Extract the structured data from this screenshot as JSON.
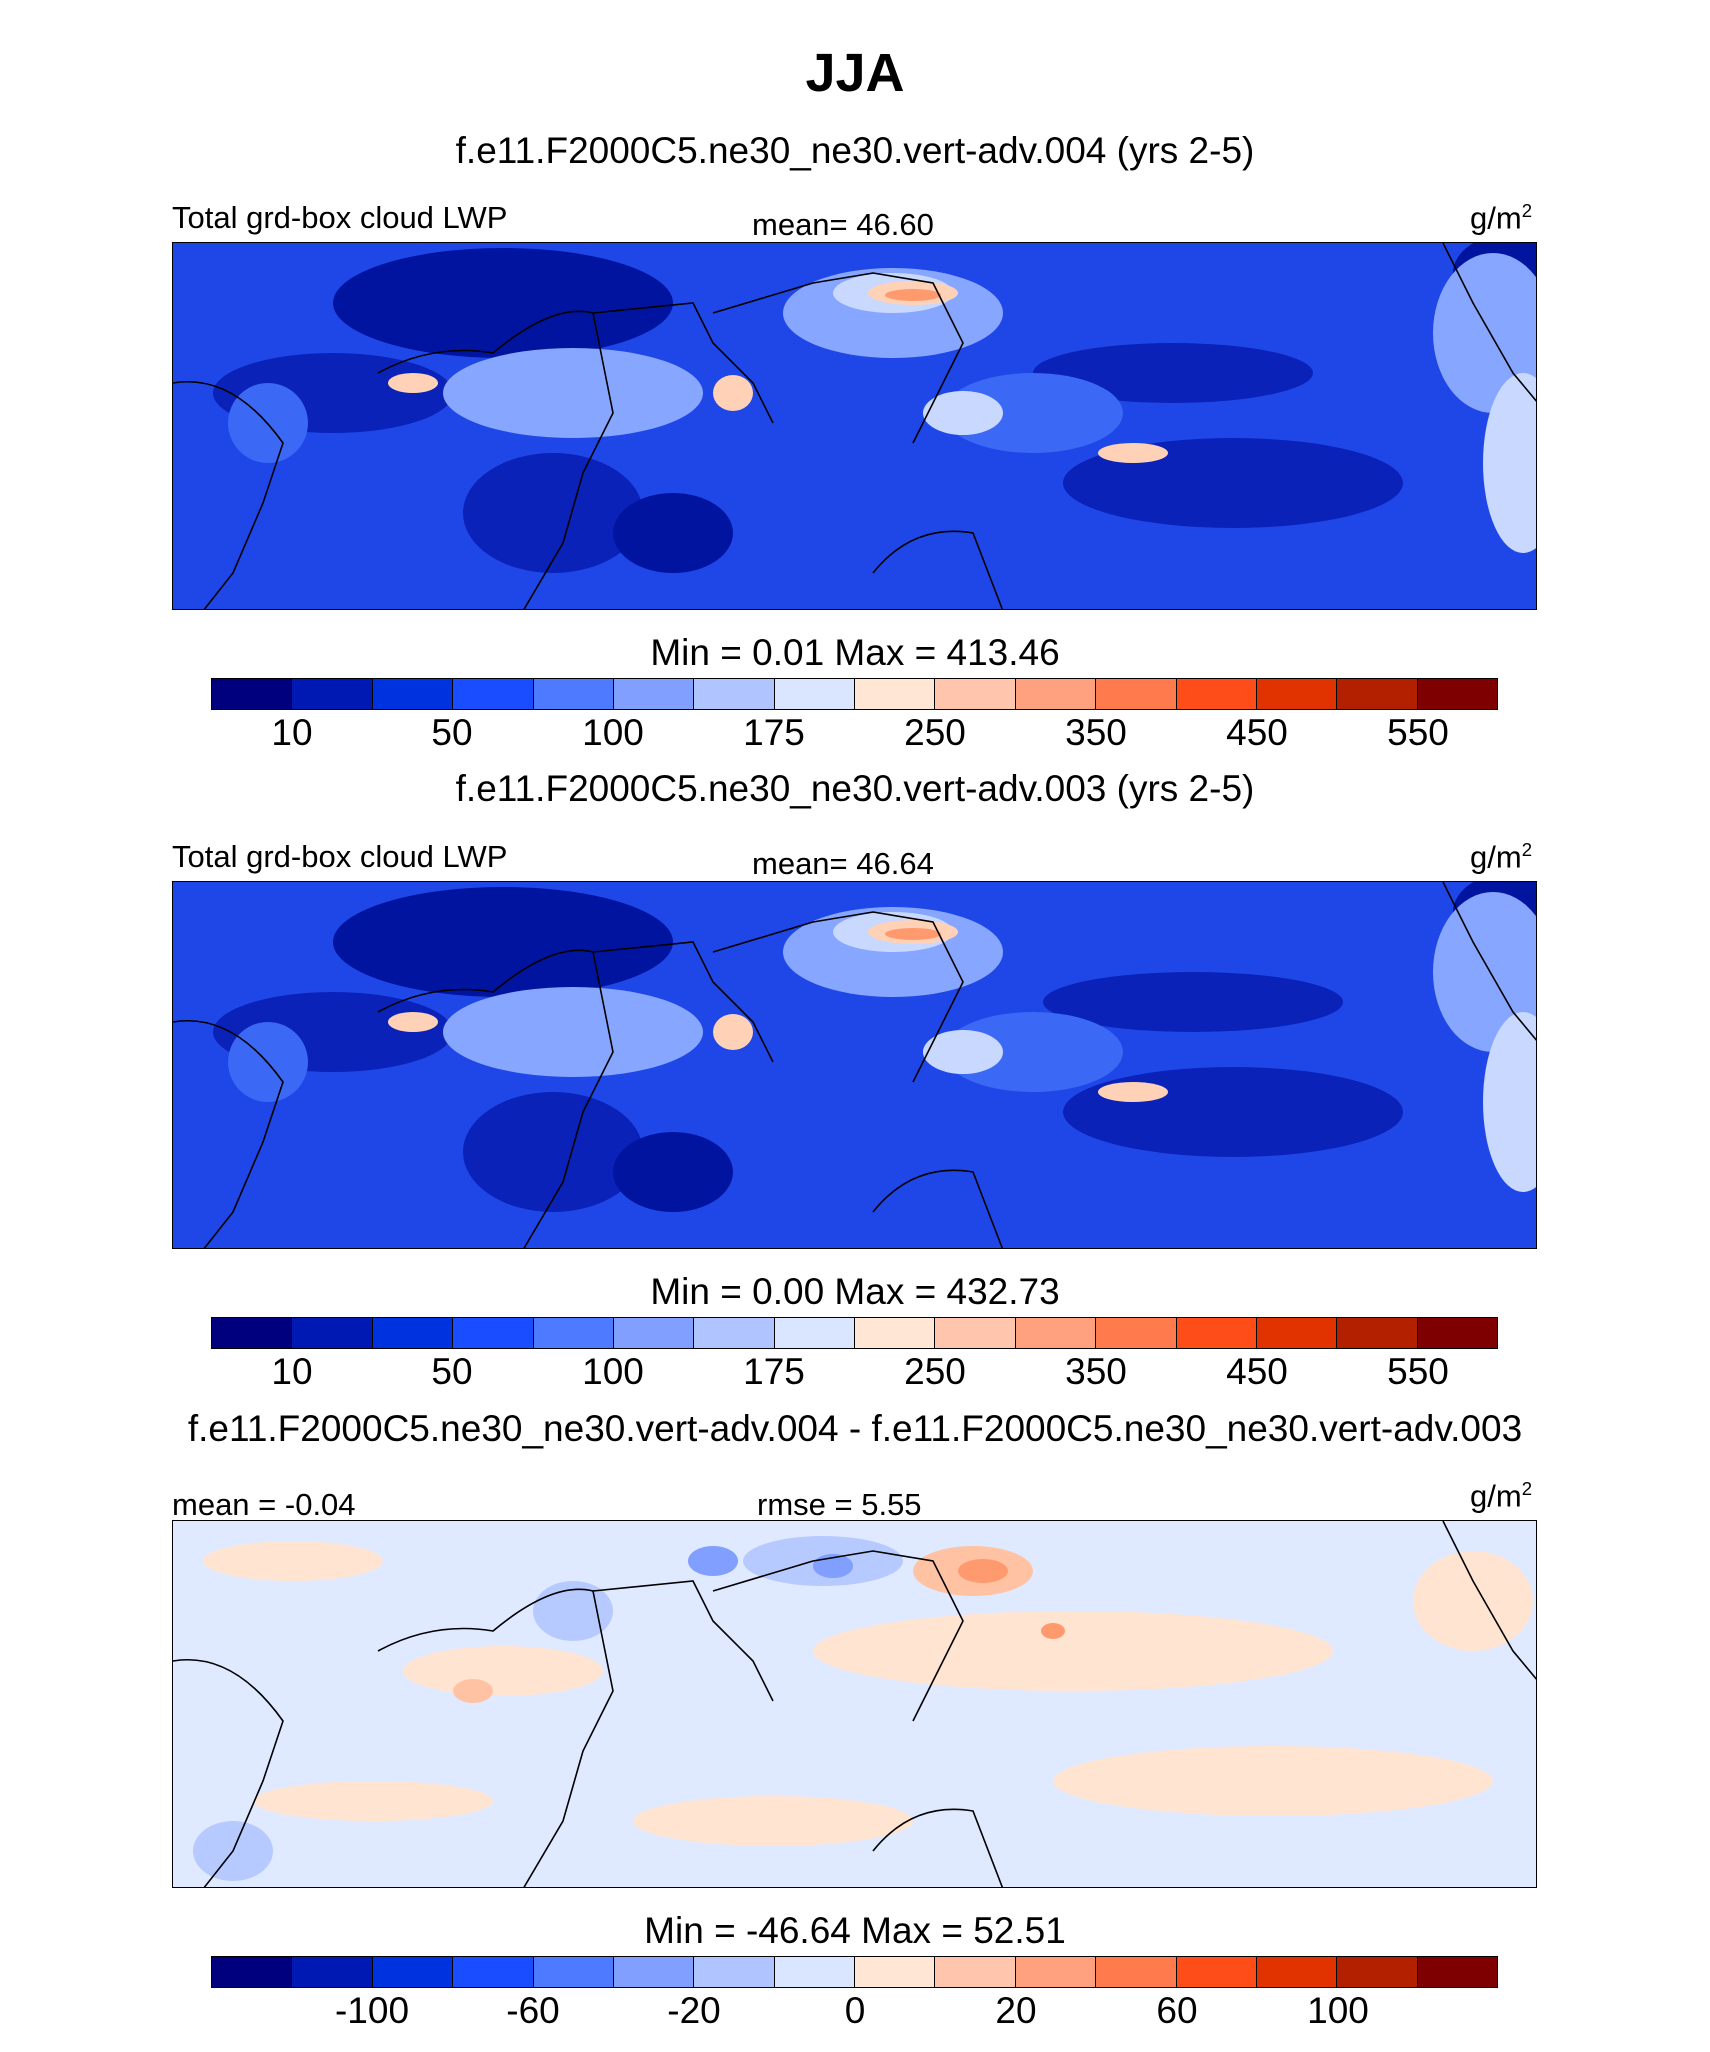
{
  "title": "JJA",
  "panels": [
    {
      "case_title": "f.e11.F2000C5.ne30_ne30.vert-adv.004 (yrs 2-5)",
      "left_label": "Total grd-box cloud LWP",
      "center_label": "mean=  46.60",
      "units": "g/m",
      "units_sup": "2",
      "minmax": "Min =   0.01 Max = 413.46",
      "colorbar_ticks": [
        "10",
        "50",
        "100",
        "175",
        "250",
        "350",
        "450",
        "550"
      ]
    },
    {
      "case_title": "f.e11.F2000C5.ne30_ne30.vert-adv.003 (yrs 2-5)",
      "left_label": "Total grd-box cloud LWP",
      "center_label": "mean=  46.64",
      "units": "g/m",
      "units_sup": "2",
      "minmax": "Min =   0.00 Max = 432.73",
      "colorbar_ticks": [
        "10",
        "50",
        "100",
        "175",
        "250",
        "350",
        "450",
        "550"
      ]
    },
    {
      "case_title": "f.e11.F2000C5.ne30_ne30.vert-adv.004 - f.e11.F2000C5.ne30_ne30.vert-adv.003",
      "left_label": "mean =  -0.04",
      "center_label": "rmse =   5.55",
      "units": "g/m",
      "units_sup": "2",
      "minmax": "Min = -46.64 Max =  52.51",
      "colorbar_ticks": [
        "-100",
        "-60",
        "-20",
        "0",
        "20",
        "60",
        "100"
      ]
    }
  ],
  "colorbar_colors": [
    "#00007f",
    "#0019b3",
    "#0033e0",
    "#1a4dff",
    "#4d7aff",
    "#809fff",
    "#b0c4ff",
    "#dae6ff",
    "#ffe6d5",
    "#ffc6ad",
    "#ffa17f",
    "#ff7a4d",
    "#ff4d1a",
    "#e03300",
    "#b32000",
    "#7f0000"
  ],
  "map_colors": {
    "ocean_base": "#1f47e8",
    "deep": "#0a22b8",
    "very_deep": "#0014a0",
    "mid": "#3b68f5",
    "light": "#86a6ff",
    "pale": "#c8d8ff",
    "warm1": "#ffd2b8",
    "warm2": "#ff9a6e",
    "diff_base": "#dfe9ff",
    "diff_pos": "#ffe4d2",
    "diff_pos2": "#ffc3a4",
    "diff_neg": "#b7caff",
    "diff_neg2": "#809fff",
    "coast": "#000000"
  }
}
